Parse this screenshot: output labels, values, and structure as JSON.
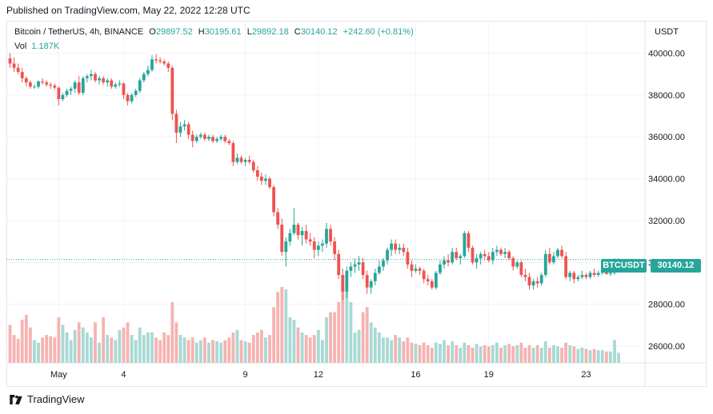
{
  "header": {
    "published": "Published on TradingView.com, May 22, 2022 12:28 UTC"
  },
  "legend": {
    "symbol": "Bitcoin / TetherUS, 4h, BINANCE",
    "o_label": "O",
    "o_value": "29897.52",
    "h_label": "H",
    "h_value": "30195.61",
    "l_label": "L",
    "l_value": "29892.18",
    "c_label": "C",
    "c_value": "30140.12",
    "change": "+242.60 (+0.81%)",
    "vol_label": "Vol",
    "vol_value": "1.187K"
  },
  "currency": "USDT",
  "price_tag": {
    "symbol": "BTCUSDT",
    "price": "30140.12"
  },
  "brand": {
    "name": "TradingView"
  },
  "colors": {
    "up": "#26a69a",
    "down": "#ef5350",
    "up_vol": "#a8d9d4",
    "down_vol": "#f5b3b1",
    "grid": "#f0f3fa"
  },
  "chart_data": {
    "type": "candlestick",
    "interval": "4h",
    "ylim": [
      25200,
      40400
    ],
    "y_ticks": [
      26000,
      28000,
      30000,
      32000,
      34000,
      36000,
      38000,
      40000
    ],
    "y_tick_labels": [
      "26000.00",
      "28000.00",
      "30000.00",
      "32000.00",
      "34000.00",
      "36000.00",
      "38000.00",
      "40000.00"
    ],
    "x_tick_labels": [
      {
        "label": "May",
        "at_index": 12
      },
      {
        "label": "4",
        "at_index": 28
      },
      {
        "label": "9",
        "at_index": 58
      },
      {
        "label": "12",
        "at_index": 76
      },
      {
        "label": "16",
        "at_index": 100
      },
      {
        "label": "19",
        "at_index": 118
      },
      {
        "label": "23",
        "at_index": 142
      }
    ],
    "last_close": 30140.12,
    "candles": [
      [
        39750,
        40000,
        39300,
        39500,
        150
      ],
      [
        39500,
        39800,
        39100,
        39300,
        110
      ],
      [
        39300,
        39500,
        39000,
        39100,
        95
      ],
      [
        39100,
        39300,
        38600,
        38800,
        170
      ],
      [
        38800,
        38900,
        38400,
        38600,
        190
      ],
      [
        38600,
        38700,
        38300,
        38400,
        140
      ],
      [
        38400,
        38500,
        38300,
        38400,
        90
      ],
      [
        38400,
        38700,
        38300,
        38650,
        80
      ],
      [
        38650,
        38800,
        38500,
        38600,
        100
      ],
      [
        38600,
        38700,
        38400,
        38500,
        110
      ],
      [
        38500,
        38600,
        38300,
        38450,
        105
      ],
      [
        38450,
        38550,
        38250,
        38350,
        100
      ],
      [
        38350,
        38400,
        37500,
        37800,
        180
      ],
      [
        37800,
        38100,
        37700,
        38000,
        150
      ],
      [
        38000,
        38300,
        37900,
        38200,
        120
      ],
      [
        38200,
        38400,
        38000,
        38300,
        90
      ],
      [
        38300,
        38700,
        38100,
        38600,
        130
      ],
      [
        38600,
        38900,
        38000,
        38100,
        160
      ],
      [
        38100,
        38900,
        38000,
        38800,
        140
      ],
      [
        38800,
        39000,
        38600,
        38900,
        120
      ],
      [
        38900,
        39200,
        38700,
        39000,
        100
      ],
      [
        39000,
        39100,
        38600,
        38700,
        160
      ],
      [
        38700,
        38900,
        38500,
        38800,
        80
      ],
      [
        38800,
        38900,
        38500,
        38600,
        180
      ],
      [
        38600,
        38800,
        38400,
        38700,
        110
      ],
      [
        38700,
        38800,
        38300,
        38400,
        100
      ],
      [
        38400,
        38600,
        38300,
        38500,
        90
      ],
      [
        38500,
        38700,
        38400,
        38550,
        130
      ],
      [
        38550,
        38600,
        37800,
        38000,
        140
      ],
      [
        38000,
        38100,
        37500,
        37700,
        160
      ],
      [
        37700,
        38100,
        37600,
        38000,
        110
      ],
      [
        38000,
        38300,
        37900,
        38200,
        90
      ],
      [
        38200,
        38800,
        38100,
        38700,
        140
      ],
      [
        38700,
        39100,
        38600,
        39000,
        110
      ],
      [
        39000,
        39400,
        38900,
        39200,
        120
      ],
      [
        39200,
        39900,
        39100,
        39700,
        120
      ],
      [
        39700,
        39950,
        39500,
        39650,
        100
      ],
      [
        39650,
        39800,
        39500,
        39600,
        90
      ],
      [
        39600,
        39700,
        39400,
        39500,
        120
      ],
      [
        39500,
        39600,
        39100,
        39300,
        110
      ],
      [
        39300,
        39400,
        36800,
        37100,
        240
      ],
      [
        37100,
        37300,
        35700,
        36200,
        160
      ],
      [
        36200,
        36700,
        36000,
        36500,
        110
      ],
      [
        36500,
        36800,
        36300,
        36600,
        100
      ],
      [
        36600,
        36700,
        35900,
        36100,
        90
      ],
      [
        36100,
        36300,
        35500,
        35800,
        100
      ],
      [
        35800,
        36100,
        35700,
        36000,
        80
      ],
      [
        36000,
        36200,
        35900,
        36100,
        90
      ],
      [
        36100,
        36200,
        35800,
        35900,
        100
      ],
      [
        35900,
        36100,
        35800,
        36000,
        80
      ],
      [
        36000,
        36100,
        35700,
        35800,
        90
      ],
      [
        35800,
        36000,
        35700,
        35900,
        85
      ],
      [
        35900,
        36100,
        35800,
        36000,
        80
      ],
      [
        36000,
        36100,
        35700,
        35800,
        90
      ],
      [
        35800,
        35900,
        35600,
        35700,
        100
      ],
      [
        35700,
        35800,
        34600,
        34800,
        120
      ],
      [
        34800,
        35200,
        34700,
        35000,
        130
      ],
      [
        35000,
        35100,
        34700,
        34800,
        90
      ],
      [
        34800,
        35000,
        34600,
        34900,
        85
      ],
      [
        34900,
        35100,
        34700,
        34800,
        80
      ],
      [
        34800,
        34900,
        34300,
        34400,
        110
      ],
      [
        34400,
        34600,
        33900,
        34100,
        120
      ],
      [
        34100,
        34300,
        33700,
        33900,
        130
      ],
      [
        33900,
        34200,
        33700,
        34000,
        100
      ],
      [
        34000,
        34100,
        33500,
        33600,
        110
      ],
      [
        33600,
        33700,
        32200,
        32400,
        220
      ],
      [
        32400,
        32600,
        31600,
        31800,
        280
      ],
      [
        31800,
        32100,
        30300,
        30500,
        300
      ],
      [
        30500,
        31200,
        29800,
        31000,
        290
      ],
      [
        31000,
        31600,
        30800,
        31400,
        180
      ],
      [
        31400,
        32600,
        31300,
        31800,
        170
      ],
      [
        31800,
        31900,
        31100,
        31300,
        140
      ],
      [
        31300,
        31700,
        30800,
        31500,
        120
      ],
      [
        31500,
        31800,
        30900,
        31100,
        110
      ],
      [
        31100,
        31400,
        30800,
        31000,
        100
      ],
      [
        31000,
        31200,
        30200,
        30600,
        110
      ],
      [
        30600,
        31000,
        30300,
        30800,
        130
      ],
      [
        30800,
        31100,
        30500,
        30900,
        90
      ],
      [
        30900,
        31900,
        30700,
        31600,
        180
      ],
      [
        31600,
        31800,
        30800,
        31000,
        200
      ],
      [
        31000,
        31200,
        30100,
        30400,
        200
      ],
      [
        30400,
        30600,
        29200,
        29400,
        240
      ],
      [
        29400,
        29700,
        28200,
        28600,
        300
      ],
      [
        28600,
        29800,
        28300,
        29600,
        280
      ],
      [
        29600,
        30000,
        29300,
        29800,
        240
      ],
      [
        29800,
        30200,
        29500,
        29900,
        120
      ],
      [
        29900,
        30300,
        29600,
        30000,
        130
      ],
      [
        30000,
        30200,
        29200,
        29400,
        200
      ],
      [
        29400,
        29600,
        28500,
        28800,
        220
      ],
      [
        28800,
        29200,
        28500,
        29100,
        160
      ],
      [
        29100,
        29700,
        28900,
        29500,
        140
      ],
      [
        29500,
        30100,
        29400,
        29800,
        120
      ],
      [
        29800,
        30200,
        29600,
        30100,
        100
      ],
      [
        30100,
        30700,
        29900,
        30600,
        100
      ],
      [
        30600,
        31100,
        30300,
        30900,
        90
      ],
      [
        30900,
        31100,
        30400,
        30600,
        110
      ],
      [
        30600,
        30900,
        30400,
        30700,
        100
      ],
      [
        30700,
        30900,
        30300,
        30500,
        85
      ],
      [
        30500,
        30700,
        29700,
        29900,
        100
      ],
      [
        29900,
        30100,
        29300,
        29600,
        80
      ],
      [
        29600,
        29900,
        29500,
        29700,
        75
      ],
      [
        29700,
        29800,
        29400,
        29600,
        70
      ],
      [
        29600,
        29700,
        29000,
        29200,
        80
      ],
      [
        29200,
        29400,
        28900,
        29100,
        70
      ],
      [
        29100,
        29200,
        28700,
        28800,
        60
      ],
      [
        28800,
        29600,
        28700,
        29500,
        80
      ],
      [
        29500,
        30100,
        29400,
        29900,
        75
      ],
      [
        29900,
        30300,
        29700,
        30100,
        90
      ],
      [
        30100,
        30400,
        29800,
        30000,
        70
      ],
      [
        30000,
        30700,
        29900,
        30500,
        85
      ],
      [
        30500,
        30700,
        30100,
        30200,
        70
      ],
      [
        30200,
        30400,
        29900,
        30300,
        60
      ],
      [
        30300,
        31500,
        30200,
        31400,
        80
      ],
      [
        31400,
        31500,
        30500,
        30700,
        70
      ],
      [
        30700,
        30800,
        29900,
        30000,
        60
      ],
      [
        30000,
        30400,
        29700,
        30200,
        75
      ],
      [
        30200,
        30500,
        29900,
        30400,
        65
      ],
      [
        30400,
        30600,
        30100,
        30300,
        70
      ],
      [
        30300,
        30500,
        30000,
        30100,
        65
      ],
      [
        30100,
        30700,
        29900,
        30500,
        70
      ],
      [
        30500,
        30800,
        30300,
        30600,
        80
      ],
      [
        30600,
        30700,
        30300,
        30400,
        60
      ],
      [
        30400,
        30700,
        30200,
        30500,
        70
      ],
      [
        30500,
        30600,
        30100,
        30200,
        75
      ],
      [
        30200,
        30300,
        29600,
        29800,
        65
      ],
      [
        29800,
        30100,
        29700,
        30000,
        70
      ],
      [
        30000,
        30100,
        29300,
        29400,
        80
      ],
      [
        29400,
        29700,
        29100,
        29300,
        60
      ],
      [
        29300,
        29500,
        28700,
        28900,
        70
      ],
      [
        28900,
        29200,
        28700,
        29100,
        60
      ],
      [
        29100,
        29300,
        28800,
        29000,
        70
      ],
      [
        29000,
        29500,
        28900,
        29400,
        60
      ],
      [
        29400,
        30600,
        29300,
        30400,
        85
      ],
      [
        30400,
        30700,
        29900,
        30000,
        60
      ],
      [
        30000,
        30500,
        29900,
        30300,
        70
      ],
      [
        30300,
        30700,
        30200,
        30600,
        65
      ],
      [
        30600,
        30800,
        30200,
        30300,
        60
      ],
      [
        30300,
        30500,
        29200,
        29300,
        80
      ],
      [
        29300,
        29600,
        29100,
        29500,
        70
      ],
      [
        29500,
        29600,
        29000,
        29200,
        65
      ],
      [
        29200,
        29400,
        29100,
        29300,
        55
      ],
      [
        29300,
        29600,
        29200,
        29400,
        60
      ],
      [
        29400,
        29500,
        29200,
        29300,
        55
      ],
      [
        29300,
        29600,
        29200,
        29500,
        50
      ],
      [
        29500,
        29700,
        29300,
        29400,
        55
      ],
      [
        29400,
        29600,
        29300,
        29500,
        50
      ],
      [
        29500,
        29700,
        29400,
        29600,
        50
      ],
      [
        29600,
        29700,
        29400,
        29450,
        45
      ],
      [
        29450,
        29600,
        29350,
        29500,
        45
      ],
      [
        29500,
        30200,
        29400,
        30100,
        90
      ],
      [
        29897.52,
        30195.61,
        29892.18,
        30140.12,
        40
      ]
    ]
  }
}
